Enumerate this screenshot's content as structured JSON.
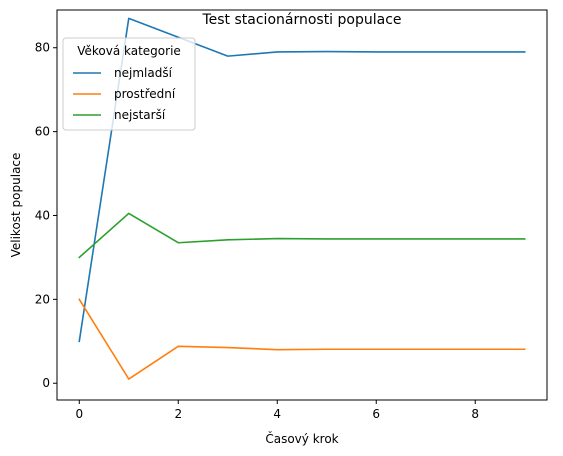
{
  "chart_data": {
    "type": "line",
    "title": "Test stacionárnosti populace",
    "xlabel": "Časový krok",
    "ylabel": "Velikost populace",
    "xlim": [
      -0.45,
      9.45
    ],
    "ylim": [
      -4,
      89
    ],
    "xticks": [
      0,
      2,
      4,
      6,
      8
    ],
    "yticks": [
      0,
      20,
      40,
      60,
      80
    ],
    "grid": false,
    "legend": {
      "title": "Věková kategorie",
      "placement": "upper-left"
    },
    "x": [
      0,
      1,
      2,
      3,
      4,
      5,
      6,
      7,
      8,
      9
    ],
    "series": [
      {
        "name": "nejmladší",
        "color": "#1f77b4",
        "values": [
          10,
          87,
          82.5,
          78,
          79,
          79.1,
          79,
          79,
          79,
          79
        ]
      },
      {
        "name": "prostřední",
        "color": "#ff7f0e",
        "values": [
          20,
          1,
          8.8,
          8.5,
          8,
          8.1,
          8.1,
          8.1,
          8.1,
          8.1
        ]
      },
      {
        "name": "nejstarší",
        "color": "#2ca02c",
        "values": [
          30,
          40.5,
          33.5,
          34.2,
          34.5,
          34.4,
          34.4,
          34.4,
          34.4,
          34.4
        ]
      }
    ]
  }
}
